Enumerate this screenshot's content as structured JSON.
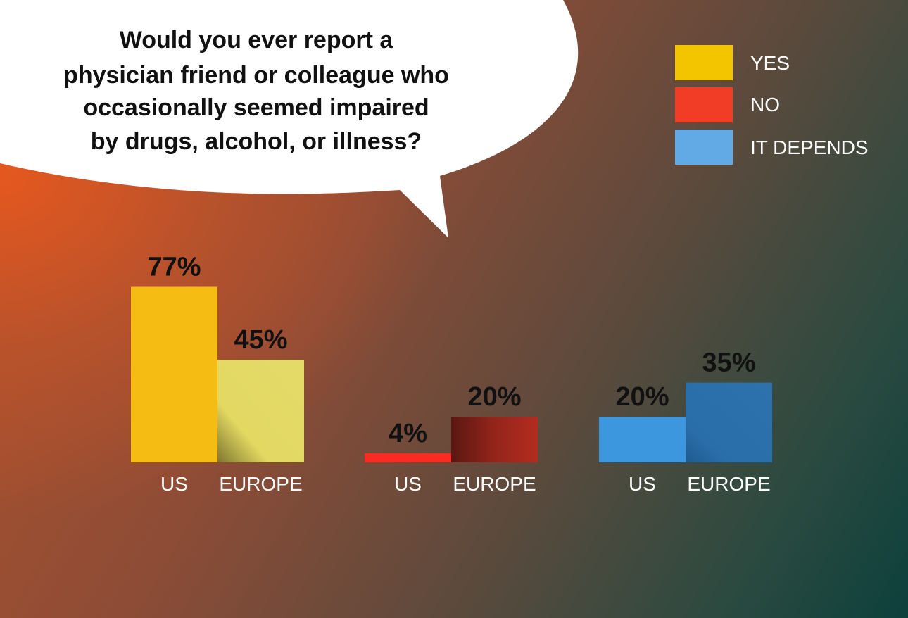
{
  "question_lines": [
    "Would you ever report a",
    "physician friend or colleague who",
    "occasionally seemed impaired",
    "by drugs, alcohol, or illness?"
  ],
  "chart_data": {
    "type": "bar",
    "title": "Would you ever report a physician friend or colleague who occasionally seemed impaired by drugs, alcohol, or illness?",
    "categories": [
      "US",
      "EUROPE"
    ],
    "unit": "%",
    "legend": {
      "placement": "top-right",
      "entries": [
        "YES",
        "NO",
        "IT DEPENDS"
      ]
    },
    "grid": false,
    "ylim": [
      0,
      100
    ],
    "series": [
      {
        "name": "YES",
        "values": [
          77,
          45
        ],
        "value_labels": [
          "77%",
          "45%"
        ],
        "colors": [
          "#f5bd14",
          "#e2d862"
        ],
        "legend_color": "#f2c500"
      },
      {
        "name": "NO",
        "values": [
          4,
          20
        ],
        "value_labels": [
          "4%",
          "20%"
        ],
        "colors": [
          "#fb2a22",
          "#a8291e"
        ],
        "legend_color": "#f13c26"
      },
      {
        "name": "IT DEPENDS",
        "values": [
          20,
          35
        ],
        "value_labels": [
          "20%",
          "35%"
        ],
        "colors": [
          "#3c97df",
          "#2a6ea9"
        ],
        "legend_color": "#62aae6"
      }
    ]
  }
}
